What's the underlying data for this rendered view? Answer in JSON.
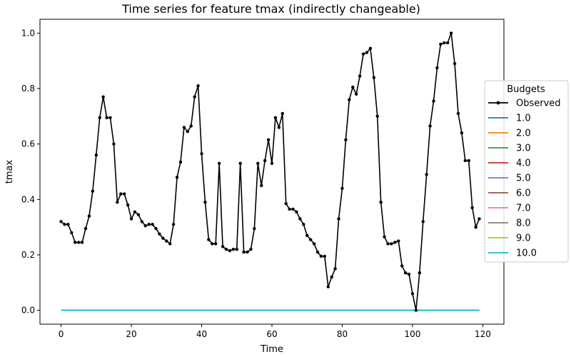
{
  "chart_data": {
    "type": "line",
    "title": "Time series for feature tmax (indirectly changeable)",
    "xlabel": "Time",
    "ylabel": "tmax",
    "xlim": [
      -6,
      126
    ],
    "ylim": [
      -0.05,
      1.05
    ],
    "xticks": [
      0,
      20,
      40,
      60,
      80,
      100,
      120
    ],
    "xtick_labels": [
      "0",
      "20",
      "40",
      "60",
      "80",
      "100",
      "120"
    ],
    "yticks": [
      0.0,
      0.2,
      0.4,
      0.6,
      0.8,
      1.0
    ],
    "ytick_labels": [
      "0.0",
      "0.2",
      "0.4",
      "0.6",
      "0.8",
      "1.0"
    ],
    "grid": false,
    "legend": {
      "title": "Budgets",
      "placement": "center-right",
      "entries": [
        "Observed",
        "1.0",
        "2.0",
        "3.0",
        "4.0",
        "5.0",
        "6.0",
        "7.0",
        "8.0",
        "9.0",
        "10.0"
      ]
    },
    "observed": {
      "name": "Observed",
      "color": "#000000",
      "marker": "dot",
      "x": [
        0,
        1,
        2,
        3,
        4,
        5,
        6,
        7,
        8,
        9,
        10,
        11,
        12,
        13,
        14,
        15,
        16,
        17,
        18,
        19,
        20,
        21,
        22,
        23,
        24,
        25,
        26,
        27,
        28,
        29,
        30,
        31,
        32,
        33,
        34,
        35,
        36,
        37,
        38,
        39,
        40,
        41,
        42,
        43,
        44,
        45,
        46,
        47,
        48,
        49,
        50,
        51,
        52,
        53,
        54,
        55,
        56,
        57,
        58,
        59,
        60,
        61,
        62,
        63,
        64,
        65,
        66,
        67,
        68,
        69,
        70,
        71,
        72,
        73,
        74,
        75,
        76,
        77,
        78,
        79,
        80,
        81,
        82,
        83,
        84,
        85,
        86,
        87,
        88,
        89,
        90,
        91,
        92,
        93,
        94,
        95,
        96,
        97,
        98,
        99,
        100,
        101,
        102,
        103,
        104,
        105,
        106,
        107,
        108,
        109,
        110,
        111,
        112,
        113,
        114,
        115,
        116,
        117,
        118,
        119
      ],
      "y": [
        0.32,
        0.31,
        0.31,
        0.28,
        0.245,
        0.245,
        0.245,
        0.295,
        0.34,
        0.43,
        0.56,
        0.695,
        0.77,
        0.695,
        0.695,
        0.6,
        0.39,
        0.42,
        0.42,
        0.38,
        0.33,
        0.355,
        0.345,
        0.32,
        0.305,
        0.31,
        0.31,
        0.295,
        0.275,
        0.26,
        0.25,
        0.24,
        0.31,
        0.48,
        0.535,
        0.66,
        0.645,
        0.665,
        0.77,
        0.81,
        0.565,
        0.39,
        0.255,
        0.24,
        0.24,
        0.53,
        0.23,
        0.22,
        0.215,
        0.22,
        0.22,
        0.53,
        0.21,
        0.21,
        0.22,
        0.295,
        0.53,
        0.45,
        0.54,
        0.615,
        0.53,
        0.695,
        0.66,
        0.71,
        0.385,
        0.365,
        0.365,
        0.355,
        0.33,
        0.31,
        0.27,
        0.255,
        0.24,
        0.21,
        0.195,
        0.195,
        0.085,
        0.12,
        0.15,
        0.33,
        0.44,
        0.615,
        0.76,
        0.805,
        0.78,
        0.845,
        0.925,
        0.93,
        0.945,
        0.84,
        0.7,
        0.39,
        0.265,
        0.24,
        0.24,
        0.245,
        0.25,
        0.16,
        0.135,
        0.13,
        0.06,
        0.0,
        0.135,
        0.32,
        0.49,
        0.665,
        0.755,
        0.875,
        0.96,
        0.965,
        0.965,
        1.0,
        0.89,
        0.71,
        0.64,
        0.54,
        0.54,
        0.37,
        0.3,
        0.33
      ]
    },
    "series": [
      {
        "name": "1.0",
        "color": "#1f77b4",
        "x": [
          0,
          119
        ],
        "values": [
          0,
          0
        ]
      },
      {
        "name": "2.0",
        "color": "#ff7f0e",
        "x": [
          0,
          119
        ],
        "values": [
          0,
          0
        ]
      },
      {
        "name": "3.0",
        "color": "#2ca02c",
        "x": [
          0,
          119
        ],
        "values": [
          0,
          0
        ]
      },
      {
        "name": "4.0",
        "color": "#d62728",
        "x": [
          0,
          119
        ],
        "values": [
          0,
          0
        ]
      },
      {
        "name": "5.0",
        "color": "#9467bd",
        "x": [
          0,
          119
        ],
        "values": [
          0,
          0
        ]
      },
      {
        "name": "6.0",
        "color": "#8c564b",
        "x": [
          0,
          119
        ],
        "values": [
          0,
          0
        ]
      },
      {
        "name": "7.0",
        "color": "#e377c2",
        "x": [
          0,
          119
        ],
        "values": [
          0,
          0
        ]
      },
      {
        "name": "8.0",
        "color": "#7f7f7f",
        "x": [
          0,
          119
        ],
        "values": [
          0,
          0
        ]
      },
      {
        "name": "9.0",
        "color": "#bcbd22",
        "x": [
          0,
          119
        ],
        "values": [
          0,
          0
        ]
      },
      {
        "name": "10.0",
        "color": "#17becf",
        "x": [
          0,
          119
        ],
        "values": [
          0,
          0
        ]
      }
    ]
  }
}
